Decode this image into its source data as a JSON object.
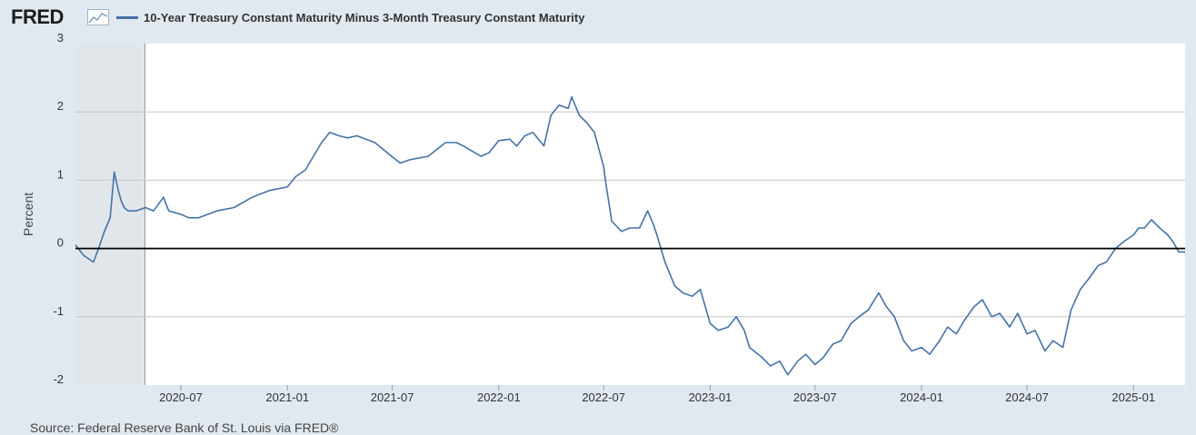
{
  "header": {
    "logo_text": "FRED",
    "logo_icon": "line-chart-icon",
    "legend_label": "10-Year Treasury Constant Maturity Minus 3-Month Treasury Constant Maturity"
  },
  "footer": {
    "source": "Source: Federal Reserve Bank of St. Louis via FRED®"
  },
  "colors": {
    "series": "#4572a7",
    "background": "#e1e9f0",
    "plot": "#ffffff",
    "recession": "#e1e6ea"
  },
  "chart_data": {
    "type": "line",
    "title": "",
    "ylabel": "Percent",
    "xlabel": "",
    "ylim": [
      -2,
      3
    ],
    "xlim": [
      "2020-01-01",
      "2025-03-31"
    ],
    "yticks": [
      3,
      2,
      1,
      0,
      -1,
      -2
    ],
    "xticks": [
      "2020-07",
      "2021-01",
      "2021-07",
      "2022-01",
      "2022-07",
      "2023-01",
      "2023-07",
      "2024-01",
      "2024-07",
      "2025-01"
    ],
    "recession_shading": [
      "2020-02-01",
      "2020-04-30"
    ],
    "zero_line": true,
    "grid": true,
    "legend": "top-left",
    "series": [
      {
        "name": "10-Year Treasury Constant Maturity Minus 3-Month Treasury Constant Maturity",
        "x": [
          "2020-01-01",
          "2020-01-15",
          "2020-02-01",
          "2020-02-10",
          "2020-02-20",
          "2020-03-01",
          "2020-03-08",
          "2020-03-15",
          "2020-03-20",
          "2020-03-25",
          "2020-04-01",
          "2020-04-15",
          "2020-05-01",
          "2020-05-15",
          "2020-06-01",
          "2020-06-10",
          "2020-07-01",
          "2020-07-15",
          "2020-08-01",
          "2020-09-01",
          "2020-10-01",
          "2020-11-01",
          "2020-12-01",
          "2021-01-01",
          "2021-01-15",
          "2021-02-01",
          "2021-02-15",
          "2021-03-01",
          "2021-03-15",
          "2021-03-31",
          "2021-04-15",
          "2021-05-01",
          "2021-06-01",
          "2021-06-30",
          "2021-07-15",
          "2021-08-01",
          "2021-09-01",
          "2021-10-01",
          "2021-10-20",
          "2021-11-01",
          "2021-12-01",
          "2021-12-15",
          "2022-01-01",
          "2022-01-20",
          "2022-02-01",
          "2022-02-15",
          "2022-03-01",
          "2022-03-20",
          "2022-04-01",
          "2022-04-15",
          "2022-05-01",
          "2022-05-07",
          "2022-05-20",
          "2022-06-01",
          "2022-06-15",
          "2022-07-01",
          "2022-07-05",
          "2022-07-15",
          "2022-08-01",
          "2022-08-15",
          "2022-09-01",
          "2022-09-15",
          "2022-09-25",
          "2022-10-01",
          "2022-10-15",
          "2022-11-01",
          "2022-11-15",
          "2022-12-01",
          "2022-12-15",
          "2023-01-01",
          "2023-01-15",
          "2023-02-01",
          "2023-02-15",
          "2023-03-01",
          "2023-03-10",
          "2023-03-25",
          "2023-04-01",
          "2023-04-15",
          "2023-05-01",
          "2023-05-15",
          "2023-06-01",
          "2023-06-15",
          "2023-07-01",
          "2023-07-15",
          "2023-08-01",
          "2023-08-15",
          "2023-09-01",
          "2023-09-15",
          "2023-10-01",
          "2023-10-19",
          "2023-11-01",
          "2023-11-15",
          "2023-12-01",
          "2023-12-15",
          "2024-01-01",
          "2024-01-15",
          "2024-02-01",
          "2024-02-15",
          "2024-03-01",
          "2024-03-15",
          "2024-04-01",
          "2024-04-15",
          "2024-05-01",
          "2024-05-15",
          "2024-06-01",
          "2024-06-15",
          "2024-07-01",
          "2024-07-15",
          "2024-08-01",
          "2024-08-15",
          "2024-09-01",
          "2024-09-15",
          "2024-10-01",
          "2024-10-15",
          "2024-11-01",
          "2024-11-15",
          "2024-12-01",
          "2024-12-15",
          "2025-01-01",
          "2025-01-10",
          "2025-01-20",
          "2025-02-01",
          "2025-02-15",
          "2025-03-01",
          "2025-03-10",
          "2025-03-20",
          "2025-03-31"
        ],
        "values": [
          0.05,
          -0.1,
          -0.2,
          0.0,
          0.25,
          0.45,
          1.12,
          0.85,
          0.7,
          0.6,
          0.55,
          0.55,
          0.6,
          0.55,
          0.75,
          0.55,
          0.5,
          0.45,
          0.45,
          0.55,
          0.6,
          0.75,
          0.85,
          0.9,
          1.05,
          1.15,
          1.35,
          1.55,
          1.7,
          1.65,
          1.62,
          1.65,
          1.55,
          1.35,
          1.25,
          1.3,
          1.35,
          1.55,
          1.55,
          1.5,
          1.35,
          1.4,
          1.58,
          1.6,
          1.5,
          1.65,
          1.7,
          1.5,
          1.95,
          2.1,
          2.05,
          2.22,
          1.95,
          1.85,
          1.7,
          1.2,
          0.95,
          0.4,
          0.25,
          0.3,
          0.3,
          0.55,
          0.35,
          0.2,
          -0.2,
          -0.55,
          -0.65,
          -0.7,
          -0.6,
          -1.1,
          -1.2,
          -1.15,
          -1.0,
          -1.2,
          -1.45,
          -1.55,
          -1.6,
          -1.72,
          -1.65,
          -1.85,
          -1.65,
          -1.55,
          -1.7,
          -1.6,
          -1.4,
          -1.35,
          -1.1,
          -1.0,
          -0.9,
          -0.65,
          -0.85,
          -1.0,
          -1.35,
          -1.5,
          -1.45,
          -1.55,
          -1.35,
          -1.15,
          -1.25,
          -1.05,
          -0.85,
          -0.75,
          -1.0,
          -0.95,
          -1.15,
          -0.95,
          -1.25,
          -1.2,
          -1.5,
          -1.35,
          -1.45,
          -0.9,
          -0.6,
          -0.45,
          -0.25,
          -0.2,
          0.0,
          0.1,
          0.2,
          0.3,
          0.3,
          0.42,
          0.3,
          0.2,
          0.1,
          -0.05,
          -0.05
        ]
      }
    ]
  }
}
